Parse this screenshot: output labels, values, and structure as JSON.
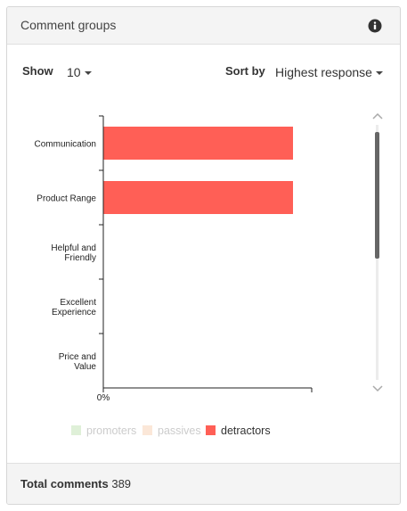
{
  "header": {
    "title": "Comment groups",
    "info_icon": "info-icon"
  },
  "controls": {
    "show_label": "Show",
    "show_value": "10",
    "sort_label": "Sort by",
    "sort_value": "Highest response"
  },
  "chart_data": {
    "type": "bar",
    "orientation": "horizontal",
    "stacked": true,
    "categories": [
      "Communication",
      "Product Range",
      "Helpful and Friendly",
      "Excellent Experience",
      "Price and Value"
    ],
    "series": [
      {
        "name": "promoters",
        "color": "#dff0d8",
        "values": [
          0,
          0,
          0,
          0,
          0
        ]
      },
      {
        "name": "passives",
        "color": "#fbe7d8",
        "values": [
          0,
          0,
          0,
          0,
          0
        ]
      },
      {
        "name": "detractors",
        "color": "#ff5f56",
        "values": [
          100,
          100,
          0,
          0,
          0
        ]
      }
    ],
    "x_tick_labels": [
      "0%"
    ],
    "legend_placement": "bottom",
    "grid": false
  },
  "legend": {
    "inactive_color": "#cccccc",
    "active_color": "#333333",
    "active_series": [
      "detractors"
    ]
  },
  "footer": {
    "label": "Total comments",
    "value": "389"
  }
}
